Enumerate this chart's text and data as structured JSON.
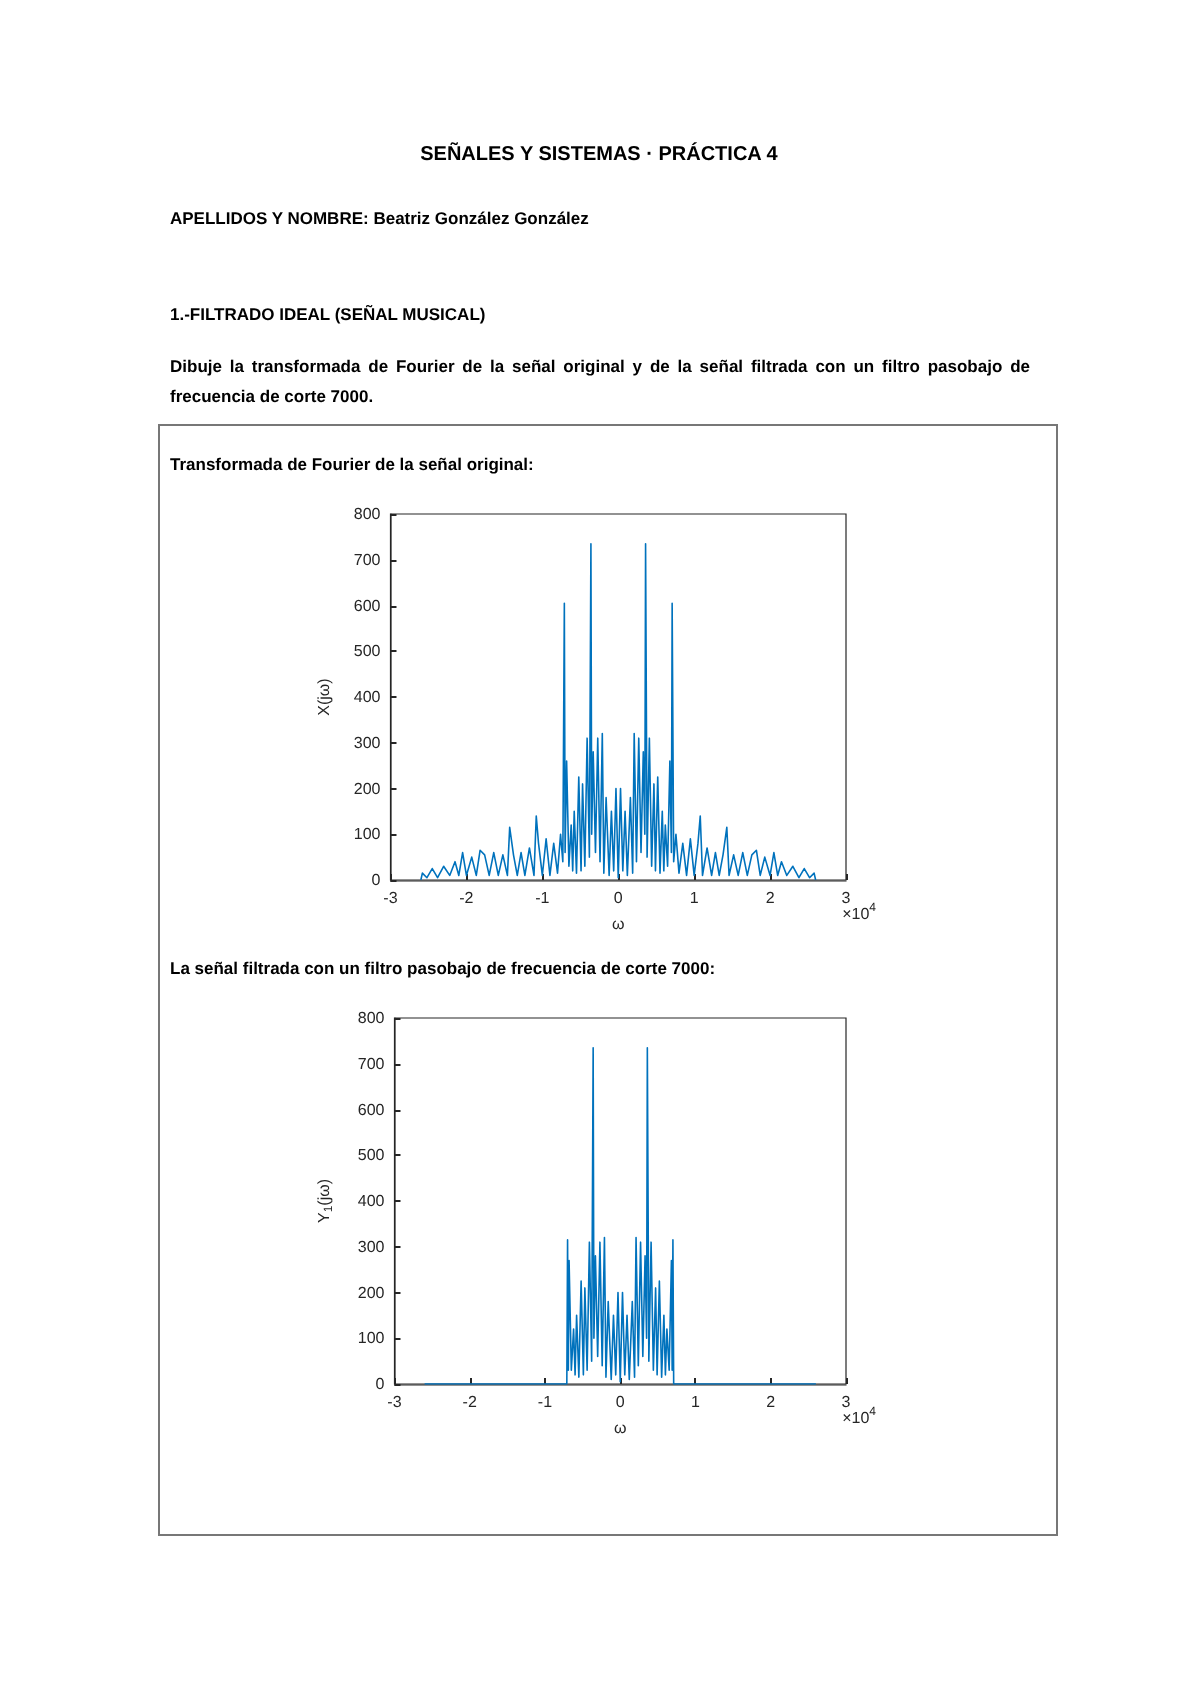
{
  "chart_data": [
    {
      "type": "line",
      "title": "Transformada de Fourier de la señal original:",
      "xlabel": "ω",
      "ylabel": "X(jω)",
      "annotations": [
        "SEÑALES Y SISTEMAS · PRÁCTICA 4",
        "APELLIDOS Y NOMBRE: Beatriz González González",
        "1.-FILTRADO IDEAL (SEÑAL MUSICAL)",
        "Dibuje la transformada de Fourier de la señal original y de la señal filtrada con un filtro pasobajo de frecuencia de corte 7000.",
        "×10$^{4}$"
      ],
      "x": [
        -2.6,
        -2.58,
        -2.52,
        -2.45,
        -2.38,
        -2.3,
        -2.22,
        -2.15,
        -2.1,
        -2.05,
        -2.0,
        -1.93,
        -1.87,
        -1.82,
        -1.76,
        -1.7,
        -1.64,
        -1.58,
        -1.52,
        -1.46,
        -1.43,
        -1.38,
        -1.33,
        -1.28,
        -1.23,
        -1.17,
        -1.11,
        -1.08,
        -1.05,
        -1.0,
        -0.95,
        -0.9,
        -0.85,
        -0.8,
        -0.76,
        -0.73,
        -0.71,
        -0.7,
        -0.68,
        -0.65,
        -0.62,
        -0.6,
        -0.58,
        -0.55,
        -0.52,
        -0.49,
        -0.47,
        -0.44,
        -0.41,
        -0.38,
        -0.36,
        -0.35,
        -0.33,
        -0.3,
        -0.27,
        -0.24,
        -0.21,
        -0.19,
        -0.16,
        -0.12,
        -0.09,
        -0.06,
        -0.03,
        0.0,
        0.03,
        0.06,
        0.09,
        0.12,
        0.16,
        0.19,
        0.21,
        0.24,
        0.27,
        0.3,
        0.33,
        0.35,
        0.36,
        0.38,
        0.41,
        0.44,
        0.47,
        0.49,
        0.52,
        0.55,
        0.58,
        0.6,
        0.62,
        0.65,
        0.68,
        0.7,
        0.71,
        0.73,
        0.76,
        0.8,
        0.85,
        0.9,
        0.95,
        1.0,
        1.05,
        1.08,
        1.11,
        1.17,
        1.23,
        1.28,
        1.33,
        1.38,
        1.43,
        1.46,
        1.52,
        1.58,
        1.64,
        1.7,
        1.76,
        1.82,
        1.87,
        1.93,
        2.0,
        2.05,
        2.1,
        2.15,
        2.22,
        2.3,
        2.38,
        2.45,
        2.52,
        2.58,
        2.6
      ],
      "series": [
        {
          "color": "#0072bd",
          "values": [
            0,
            15,
            5,
            25,
            5,
            30,
            10,
            40,
            10,
            60,
            10,
            50,
            10,
            65,
            55,
            10,
            60,
            10,
            55,
            10,
            115,
            55,
            10,
            60,
            10,
            70,
            10,
            140,
            80,
            10,
            90,
            10,
            80,
            15,
            100,
            40,
            605,
            60,
            260,
            30,
            120,
            20,
            150,
            15,
            225,
            20,
            210,
            30,
            310,
            50,
            735,
            100,
            280,
            60,
            310,
            40,
            320,
            15,
            180,
            10,
            150,
            20,
            200,
            5,
            200,
            20,
            150,
            10,
            180,
            15,
            320,
            40,
            310,
            60,
            280,
            100,
            735,
            50,
            310,
            30,
            210,
            20,
            225,
            15,
            150,
            20,
            120,
            30,
            260,
            60,
            605,
            40,
            100,
            15,
            80,
            10,
            90,
            10,
            80,
            140,
            10,
            70,
            10,
            60,
            10,
            55,
            115,
            10,
            55,
            10,
            60,
            10,
            55,
            65,
            10,
            50,
            10,
            60,
            10,
            40,
            10,
            30,
            5,
            25,
            5,
            15,
            0
          ]
        }
      ],
      "xlim": [
        -3,
        3
      ],
      "xticks": [
        -3,
        -2,
        -1,
        0,
        1,
        2,
        3
      ],
      "ylim": [
        0,
        800
      ],
      "yticks": [
        0,
        100,
        200,
        300,
        400,
        500,
        600,
        700,
        800
      ],
      "grid": false,
      "marker": "none",
      "line_style": "solid"
    },
    {
      "type": "line",
      "title": "La señal filtrada con un filtro pasobajo de frecuencia de corte 7000:",
      "xlabel": "ω",
      "ylabel": "Y$_{1}$(jω)",
      "annotations": [
        "×10$^{4}$"
      ],
      "x": [
        -2.6,
        -0.71,
        -0.7,
        -0.69,
        -0.68,
        -0.65,
        -0.62,
        -0.6,
        -0.58,
        -0.55,
        -0.52,
        -0.49,
        -0.47,
        -0.44,
        -0.41,
        -0.38,
        -0.36,
        -0.35,
        -0.33,
        -0.3,
        -0.27,
        -0.24,
        -0.21,
        -0.19,
        -0.16,
        -0.12,
        -0.09,
        -0.06,
        -0.03,
        0.0,
        0.03,
        0.06,
        0.09,
        0.12,
        0.16,
        0.19,
        0.21,
        0.24,
        0.27,
        0.3,
        0.33,
        0.35,
        0.36,
        0.38,
        0.41,
        0.44,
        0.47,
        0.49,
        0.52,
        0.55,
        0.58,
        0.6,
        0.62,
        0.65,
        0.68,
        0.69,
        0.7,
        0.71,
        2.6
      ],
      "series": [
        {
          "color": "#0072bd",
          "values": [
            0,
            0,
            315,
            30,
            270,
            30,
            120,
            20,
            150,
            15,
            225,
            20,
            210,
            30,
            310,
            50,
            735,
            100,
            280,
            60,
            310,
            40,
            320,
            15,
            180,
            10,
            150,
            20,
            200,
            5,
            200,
            20,
            150,
            10,
            180,
            15,
            320,
            40,
            310,
            60,
            280,
            100,
            735,
            50,
            310,
            30,
            210,
            20,
            225,
            15,
            150,
            20,
            120,
            30,
            270,
            30,
            315,
            0,
            0
          ]
        }
      ],
      "xlim": [
        -3,
        3
      ],
      "xticks": [
        -3,
        -2,
        -1,
        0,
        1,
        2,
        3
      ],
      "ylim": [
        0,
        800
      ],
      "yticks": [
        0,
        100,
        200,
        300,
        400,
        500,
        600,
        700,
        800
      ],
      "grid": false,
      "marker": "none",
      "line_style": "solid"
    }
  ]
}
